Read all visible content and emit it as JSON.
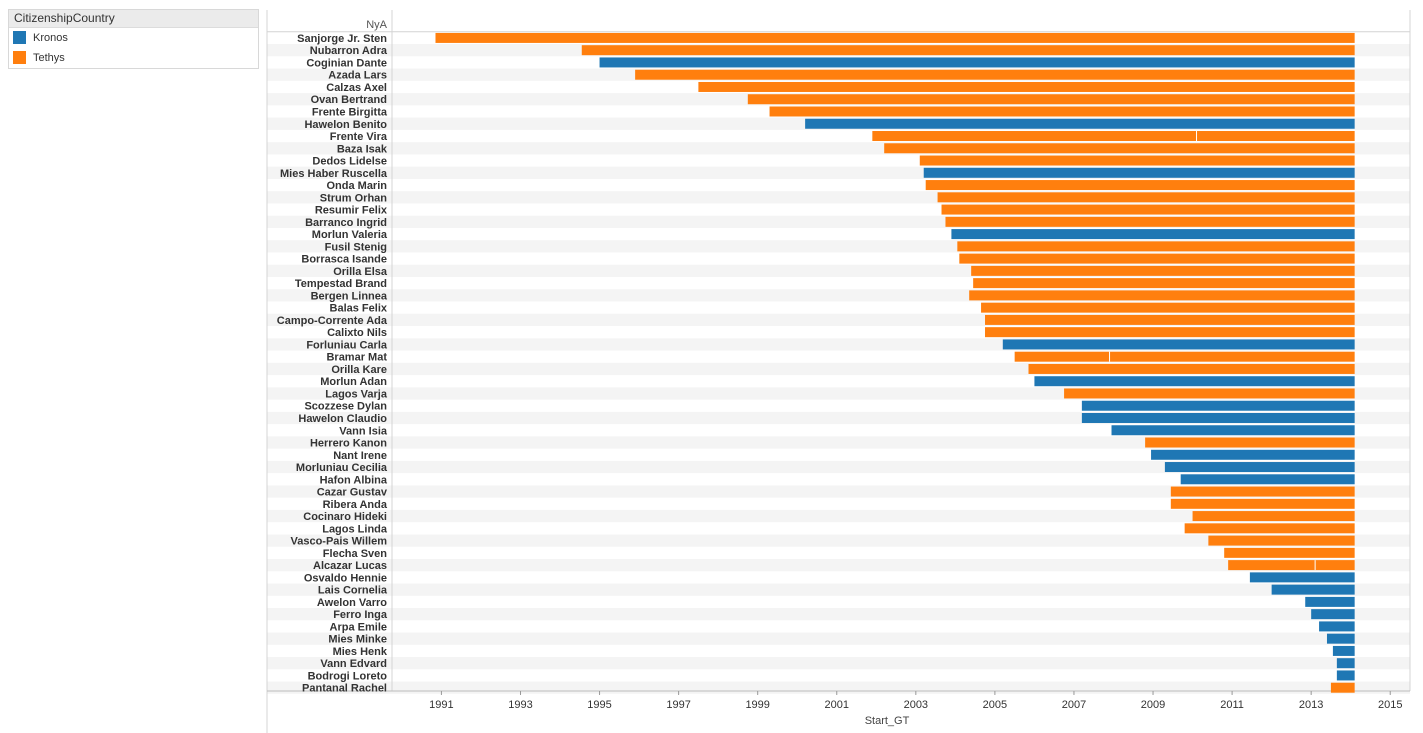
{
  "legend": {
    "title": "CitizenshipCountry",
    "items": [
      {
        "label": "Kronos",
        "color": "#1f77b4"
      },
      {
        "label": "Tethys",
        "color": "#ff7f0e"
      }
    ]
  },
  "chart_data": {
    "type": "bar",
    "orientation": "horizontal",
    "row_header": "NyA",
    "xlabel": "Start_GT",
    "xlim": [
      1989.75,
      2015.5
    ],
    "x_ticks": [
      1991,
      1993,
      1995,
      1997,
      1999,
      2001,
      2003,
      2005,
      2007,
      2009,
      2011,
      2013,
      2015
    ],
    "end_value": 2014.1,
    "grid": false,
    "legend_placement": "top-left",
    "colors": {
      "Kronos": "#1f77b4",
      "Tethys": "#ff7f0e"
    },
    "rows": [
      {
        "name": "Sanjorge Jr. Sten",
        "country": "Tethys",
        "start": 1990.85
      },
      {
        "name": "Nubarron Adra",
        "country": "Tethys",
        "start": 1994.55
      },
      {
        "name": "Coginian Dante",
        "country": "Kronos",
        "start": 1995.0
      },
      {
        "name": "Azada Lars",
        "country": "Tethys",
        "start": 1995.9
      },
      {
        "name": "Calzas Axel",
        "country": "Tethys",
        "start": 1997.5
      },
      {
        "name": "Ovan Bertrand",
        "country": "Tethys",
        "start": 1998.75
      },
      {
        "name": "Frente Birgitta",
        "country": "Tethys",
        "start": 1999.3
      },
      {
        "name": "Hawelon Benito",
        "country": "Kronos",
        "start": 2000.2
      },
      {
        "name": "Frente Vira",
        "country": "Tethys",
        "start": 2001.9,
        "split": 2010.1
      },
      {
        "name": "Baza Isak",
        "country": "Tethys",
        "start": 2002.2
      },
      {
        "name": "Dedos Lidelse",
        "country": "Tethys",
        "start": 2003.1
      },
      {
        "name": "Mies Haber Ruscella",
        "country": "Kronos",
        "start": 2003.2
      },
      {
        "name": "Onda Marin",
        "country": "Tethys",
        "start": 2003.25
      },
      {
        "name": "Strum Orhan",
        "country": "Tethys",
        "start": 2003.55
      },
      {
        "name": "Resumir Felix",
        "country": "Tethys",
        "start": 2003.65
      },
      {
        "name": "Barranco Ingrid",
        "country": "Tethys",
        "start": 2003.75
      },
      {
        "name": "Morlun Valeria",
        "country": "Kronos",
        "start": 2003.9
      },
      {
        "name": "Fusil Stenig",
        "country": "Tethys",
        "start": 2004.05
      },
      {
        "name": "Borrasca Isande",
        "country": "Tethys",
        "start": 2004.1
      },
      {
        "name": "Orilla Elsa",
        "country": "Tethys",
        "start": 2004.4
      },
      {
        "name": "Tempestad Brand",
        "country": "Tethys",
        "start": 2004.45
      },
      {
        "name": "Bergen Linnea",
        "country": "Tethys",
        "start": 2004.35
      },
      {
        "name": "Balas Felix",
        "country": "Tethys",
        "start": 2004.65
      },
      {
        "name": "Campo-Corrente Ada",
        "country": "Tethys",
        "start": 2004.75
      },
      {
        "name": "Calixto Nils",
        "country": "Tethys",
        "start": 2004.75
      },
      {
        "name": "Forluniau Carla",
        "country": "Kronos",
        "start": 2005.2
      },
      {
        "name": "Bramar Mat",
        "country": "Tethys",
        "start": 2005.5,
        "split": 2007.9
      },
      {
        "name": "Orilla Kare",
        "country": "Tethys",
        "start": 2005.85
      },
      {
        "name": "Morlun Adan",
        "country": "Kronos",
        "start": 2006.0
      },
      {
        "name": "Lagos Varja",
        "country": "Tethys",
        "start": 2006.75
      },
      {
        "name": "Scozzese Dylan",
        "country": "Kronos",
        "start": 2007.2
      },
      {
        "name": "Hawelon Claudio",
        "country": "Kronos",
        "start": 2007.2
      },
      {
        "name": "Vann Isia",
        "country": "Kronos",
        "start": 2007.95
      },
      {
        "name": "Herrero Kanon",
        "country": "Tethys",
        "start": 2008.8
      },
      {
        "name": "Nant Irene",
        "country": "Kronos",
        "start": 2008.95
      },
      {
        "name": "Morluniau Cecilia",
        "country": "Kronos",
        "start": 2009.3
      },
      {
        "name": "Hafon Albina",
        "country": "Kronos",
        "start": 2009.7
      },
      {
        "name": "Cazar Gustav",
        "country": "Tethys",
        "start": 2009.45
      },
      {
        "name": "Ribera Anda",
        "country": "Tethys",
        "start": 2009.45
      },
      {
        "name": "Cocinaro Hideki",
        "country": "Tethys",
        "start": 2010.0
      },
      {
        "name": "Lagos Linda",
        "country": "Tethys",
        "start": 2009.8
      },
      {
        "name": "Vasco-Pais Willem",
        "country": "Tethys",
        "start": 2010.4
      },
      {
        "name": "Flecha Sven",
        "country": "Tethys",
        "start": 2010.8
      },
      {
        "name": "Alcazar Lucas",
        "country": "Tethys",
        "start": 2010.9,
        "split": 2013.1
      },
      {
        "name": "Osvaldo Hennie",
        "country": "Kronos",
        "start": 2011.45
      },
      {
        "name": "Lais Cornelia",
        "country": "Kronos",
        "start": 2012.0
      },
      {
        "name": "Awelon Varro",
        "country": "Kronos",
        "start": 2012.85
      },
      {
        "name": "Ferro Inga",
        "country": "Kronos",
        "start": 2013.0
      },
      {
        "name": "Arpa Emile",
        "country": "Kronos",
        "start": 2013.2
      },
      {
        "name": "Mies Minke",
        "country": "Kronos",
        "start": 2013.4
      },
      {
        "name": "Mies Henk",
        "country": "Kronos",
        "start": 2013.55
      },
      {
        "name": "Vann Edvard",
        "country": "Kronos",
        "start": 2013.65
      },
      {
        "name": "Bodrogi Loreto",
        "country": "Kronos",
        "start": 2013.65
      },
      {
        "name": "Pantanal Rachel",
        "country": "Tethys",
        "start": 2013.5
      }
    ]
  }
}
